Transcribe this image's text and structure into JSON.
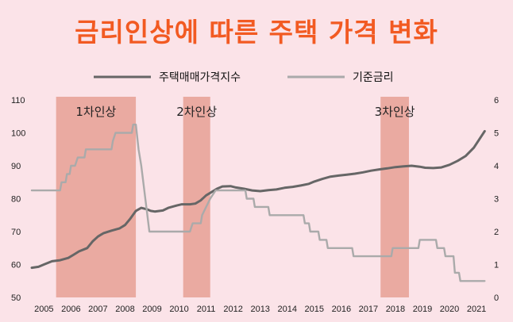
{
  "title": "금리인상에 따른 주택 가격 변화",
  "colors": {
    "background": "#fbe3e8",
    "title": "#f25a22",
    "band": "#e8a399",
    "housing": "#666666",
    "rate": "#aaaaaa"
  },
  "chart_data": {
    "type": "line",
    "title": "금리인상에 따른 주택 가격 변화",
    "legend_position": "top",
    "grid": false,
    "x_ticks": [
      "2005",
      "2006",
      "2007",
      "2008",
      "2009",
      "2010",
      "2011",
      "2012",
      "2013",
      "2014",
      "2015",
      "2016",
      "2017",
      "2018",
      "2019",
      "2020",
      "2021"
    ],
    "x_range": [
      2004.55,
      2021.35
    ],
    "ylim_left": [
      50,
      110
    ],
    "y_ticks_left": [
      50,
      60,
      70,
      80,
      90,
      100,
      110
    ],
    "ylim_right": [
      0,
      6
    ],
    "y_ticks_right": [
      0,
      1,
      2,
      3,
      4,
      5,
      6
    ],
    "bands": [
      {
        "label": "1차인상",
        "start": 2005.45,
        "end": 2008.4
      },
      {
        "label": "2차인상",
        "start": 2010.15,
        "end": 2011.15
      },
      {
        "label": "3차인상",
        "start": 2017.45,
        "end": 2018.5
      }
    ],
    "series": [
      {
        "name": "주택매매가격지수",
        "axis": "left",
        "points": [
          [
            2004.55,
            59
          ],
          [
            2004.8,
            59.3
          ],
          [
            2005.0,
            60
          ],
          [
            2005.3,
            61
          ],
          [
            2005.6,
            61.3
          ],
          [
            2005.9,
            62
          ],
          [
            2006.1,
            63
          ],
          [
            2006.3,
            64
          ],
          [
            2006.6,
            65
          ],
          [
            2006.8,
            67
          ],
          [
            2007.0,
            68.5
          ],
          [
            2007.2,
            69.5
          ],
          [
            2007.5,
            70.3
          ],
          [
            2007.8,
            71
          ],
          [
            2008.0,
            72
          ],
          [
            2008.2,
            74
          ],
          [
            2008.4,
            76.3
          ],
          [
            2008.6,
            77.2
          ],
          [
            2008.8,
            76.8
          ],
          [
            2008.95,
            76.3
          ],
          [
            2009.1,
            76.1
          ],
          [
            2009.4,
            76.4
          ],
          [
            2009.6,
            77.2
          ],
          [
            2009.9,
            77.9
          ],
          [
            2010.1,
            78.3
          ],
          [
            2010.4,
            78.3
          ],
          [
            2010.6,
            78.5
          ],
          [
            2010.8,
            79.5
          ],
          [
            2011.0,
            81
          ],
          [
            2011.2,
            82
          ],
          [
            2011.4,
            83
          ],
          [
            2011.6,
            83.7
          ],
          [
            2011.9,
            83.8
          ],
          [
            2012.1,
            83.4
          ],
          [
            2012.4,
            83
          ],
          [
            2012.7,
            82.5
          ],
          [
            2013.0,
            82.3
          ],
          [
            2013.3,
            82.6
          ],
          [
            2013.6,
            82.8
          ],
          [
            2013.9,
            83.3
          ],
          [
            2014.2,
            83.6
          ],
          [
            2014.5,
            84
          ],
          [
            2014.8,
            84.5
          ],
          [
            2015.0,
            85.2
          ],
          [
            2015.3,
            86
          ],
          [
            2015.6,
            86.7
          ],
          [
            2015.9,
            87
          ],
          [
            2016.2,
            87.3
          ],
          [
            2016.5,
            87.6
          ],
          [
            2016.8,
            88
          ],
          [
            2017.1,
            88.5
          ],
          [
            2017.4,
            88.9
          ],
          [
            2017.7,
            89.2
          ],
          [
            2018.0,
            89.6
          ],
          [
            2018.3,
            89.8
          ],
          [
            2018.6,
            90
          ],
          [
            2018.9,
            89.7
          ],
          [
            2019.1,
            89.4
          ],
          [
            2019.4,
            89.3
          ],
          [
            2019.7,
            89.5
          ],
          [
            2020.0,
            90.3
          ],
          [
            2020.3,
            91.5
          ],
          [
            2020.6,
            93
          ],
          [
            2020.9,
            95.5
          ],
          [
            2021.1,
            98
          ],
          [
            2021.3,
            100.5
          ]
        ]
      },
      {
        "name": "기준금리",
        "axis": "right",
        "points": [
          [
            2004.55,
            3.25
          ],
          [
            2005.15,
            3.25
          ],
          [
            2005.6,
            3.25
          ],
          [
            2005.65,
            3.5
          ],
          [
            2005.8,
            3.5
          ],
          [
            2005.85,
            3.75
          ],
          [
            2005.95,
            3.75
          ],
          [
            2006.0,
            4.0
          ],
          [
            2006.15,
            4.0
          ],
          [
            2006.25,
            4.25
          ],
          [
            2006.5,
            4.25
          ],
          [
            2006.55,
            4.5
          ],
          [
            2007.0,
            4.5
          ],
          [
            2007.1,
            4.5
          ],
          [
            2007.5,
            4.5
          ],
          [
            2007.55,
            4.75
          ],
          [
            2007.65,
            5.0
          ],
          [
            2008.25,
            5.0
          ],
          [
            2008.3,
            5.25
          ],
          [
            2008.4,
            5.25
          ],
          [
            2008.5,
            4.5
          ],
          [
            2008.6,
            4.0
          ],
          [
            2008.75,
            3.0
          ],
          [
            2008.9,
            2.0
          ],
          [
            2009.1,
            2.0
          ],
          [
            2010.4,
            2.0
          ],
          [
            2010.5,
            2.25
          ],
          [
            2010.8,
            2.25
          ],
          [
            2010.85,
            2.5
          ],
          [
            2011.0,
            2.75
          ],
          [
            2011.15,
            3.0
          ],
          [
            2011.35,
            3.25
          ],
          [
            2012.45,
            3.25
          ],
          [
            2012.5,
            3.0
          ],
          [
            2012.75,
            3.0
          ],
          [
            2012.8,
            2.75
          ],
          [
            2013.3,
            2.75
          ],
          [
            2013.35,
            2.5
          ],
          [
            2014.6,
            2.5
          ],
          [
            2014.65,
            2.25
          ],
          [
            2014.8,
            2.25
          ],
          [
            2014.85,
            2.0
          ],
          [
            2015.15,
            2.0
          ],
          [
            2015.2,
            1.75
          ],
          [
            2015.45,
            1.75
          ],
          [
            2015.5,
            1.5
          ],
          [
            2016.4,
            1.5
          ],
          [
            2016.45,
            1.25
          ],
          [
            2017.85,
            1.25
          ],
          [
            2017.9,
            1.5
          ],
          [
            2018.85,
            1.5
          ],
          [
            2018.9,
            1.75
          ],
          [
            2019.5,
            1.75
          ],
          [
            2019.55,
            1.5
          ],
          [
            2019.8,
            1.5
          ],
          [
            2019.85,
            1.25
          ],
          [
            2020.15,
            1.25
          ],
          [
            2020.2,
            0.75
          ],
          [
            2020.35,
            0.75
          ],
          [
            2020.4,
            0.5
          ],
          [
            2021.3,
            0.5
          ]
        ]
      }
    ]
  }
}
